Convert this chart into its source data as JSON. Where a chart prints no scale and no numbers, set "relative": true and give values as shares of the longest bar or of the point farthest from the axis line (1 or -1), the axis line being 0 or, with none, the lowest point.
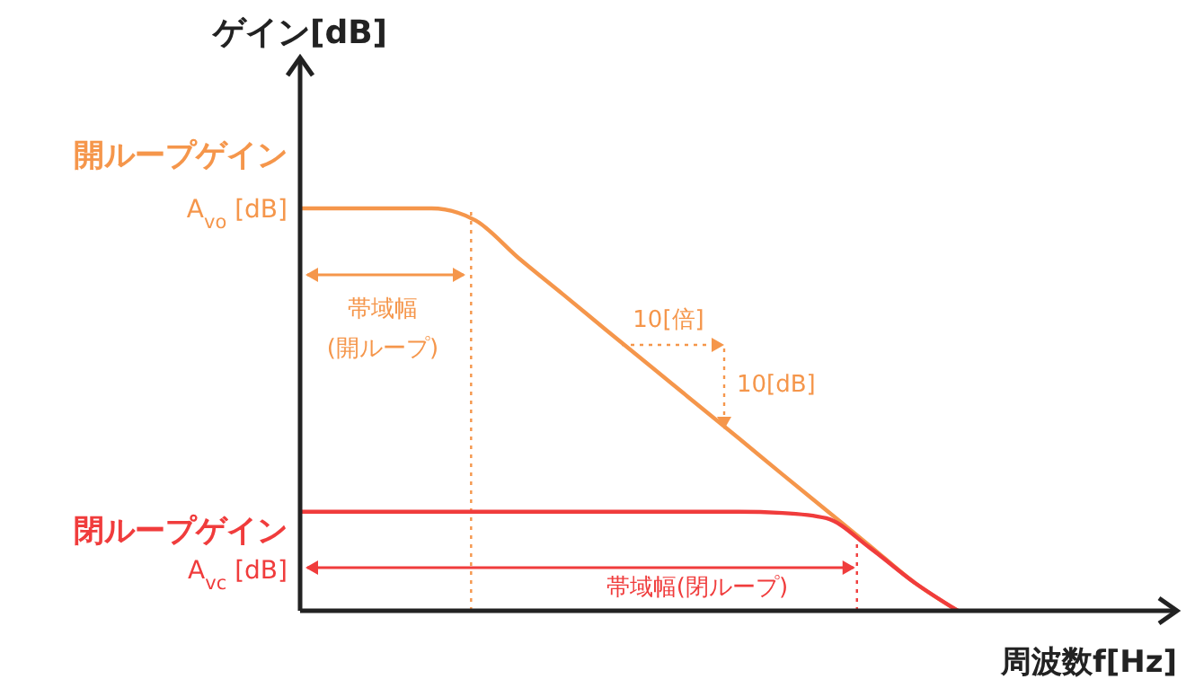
{
  "chart_data": {
    "type": "line",
    "relative": true,
    "ylabel": "ゲイン[dB]",
    "xlabel": "周波数f[Hz]",
    "categories": [
      null,
      null,
      null,
      null,
      null,
      null,
      null,
      null,
      null,
      null,
      null,
      null,
      null,
      null,
      null,
      null,
      null,
      null,
      null,
      null,
      null
    ],
    "series": [
      {
        "color": "#f5964b",
        "values": [
          1,
          1,
          1,
          1,
          0.97,
          0.875,
          0.786,
          0.696,
          0.607,
          0.518,
          0.429,
          0.339,
          0.25,
          0.161,
          0.071,
          0,
          null,
          null,
          null,
          null,
          null
        ]
      },
      {
        "color": "#f03c3c",
        "values": [
          0.246,
          0.246,
          0.246,
          0.246,
          0.246,
          0.246,
          0.246,
          0.246,
          0.246,
          0.246,
          0.246,
          0.243,
          0.23,
          0.156,
          0.071,
          0,
          null,
          null,
          null,
          null,
          null
        ]
      }
    ],
    "annotations": [
      "開ループゲイン",
      "A$_{vo}$[dB]",
      "帯域幅",
      "(開ループ)",
      "10[倍]",
      "10[dB]",
      "閉ループゲイン",
      "A$_{vc}$[dB]",
      "帯域幅(閉ループ)"
    ]
  }
}
